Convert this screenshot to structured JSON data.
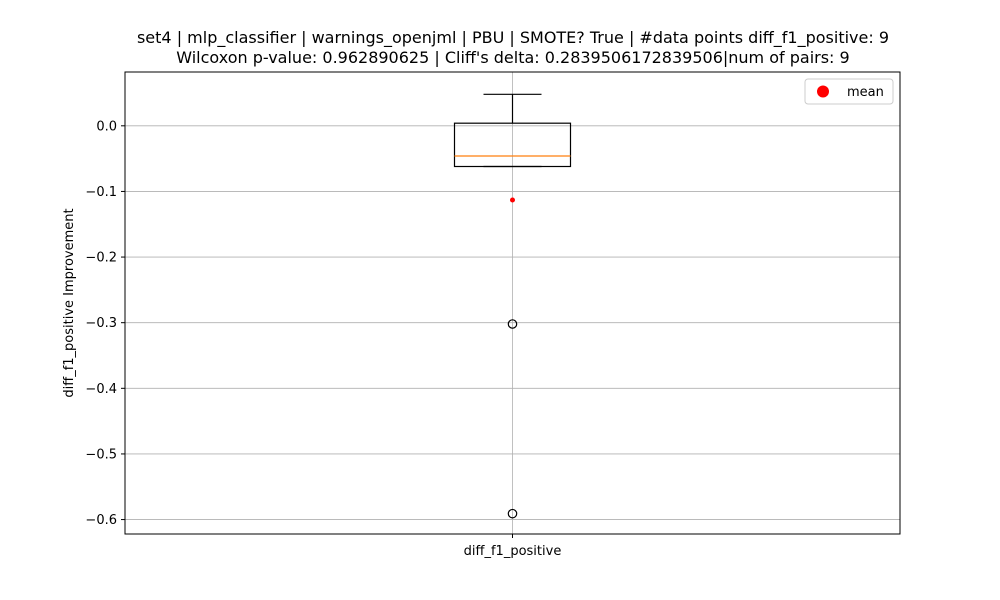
{
  "chart_data": {
    "type": "box",
    "title": "set4 | mlp_classifier | warnings_openjml | PBU | SMOTE? True | #data points diff_f1_positive: 9",
    "subtitle": "Wilcoxon p-value: 0.962890625 | Cliff's delta: 0.2839506172839506|num of pairs: 9",
    "xlabel": "",
    "ylabel": "diff_f1_positive Improvement",
    "categories": [
      "diff_f1_positive"
    ],
    "ylim": [
      -0.622,
      0.082
    ],
    "yticks": [
      0.0,
      -0.1,
      -0.2,
      -0.3,
      -0.4,
      -0.5,
      -0.6
    ],
    "ytick_labels": [
      "0.0",
      "−0.1",
      "−0.2",
      "−0.3",
      "−0.4",
      "−0.5",
      "−0.6"
    ],
    "grid": true,
    "legend": {
      "placement": "top-right",
      "entries": [
        "mean"
      ]
    },
    "series": [
      {
        "category": "diff_f1_positive",
        "whisker_low": -0.062,
        "q1": -0.062,
        "median": -0.046,
        "q3": 0.004,
        "whisker_high": 0.048,
        "mean": -0.113,
        "outliers": [
          -0.302,
          -0.591
        ]
      }
    ],
    "colors": {
      "median": "#ff7f0e",
      "mean": "#ff0000",
      "grid": "#b0b0b0",
      "box": "#000000"
    }
  }
}
